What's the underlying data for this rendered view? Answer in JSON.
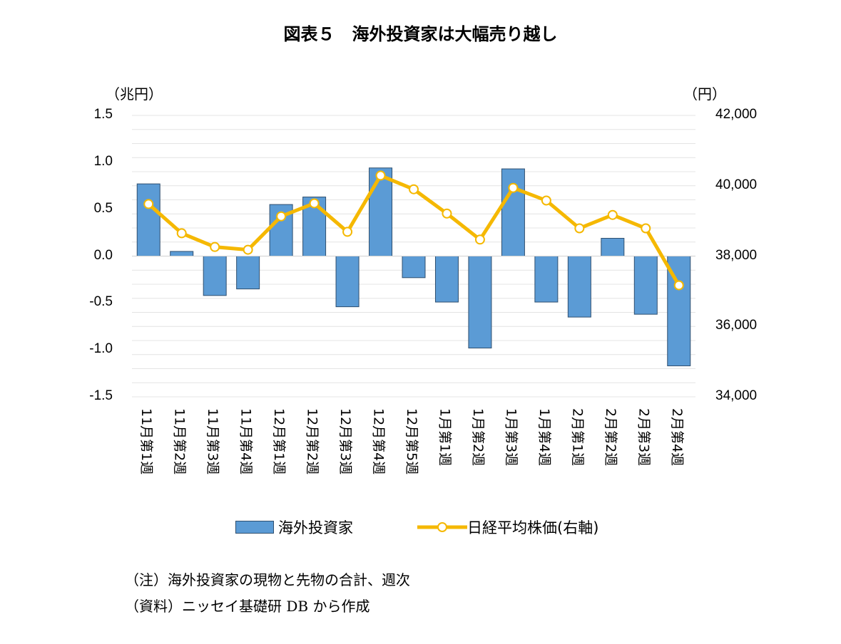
{
  "title": "図表５　海外投資家は大幅売り越し",
  "notes": [
    "（注）海外投資家の現物と先物の合計、週次",
    "（資料）ニッセイ基礎研 DB から作成"
  ],
  "chart_data": {
    "type": "bar+line",
    "title": "図表５　海外投資家は大幅売り越し",
    "left_unit": "（兆円）",
    "right_unit": "（円）",
    "ylim_left": [
      -1.5,
      1.5
    ],
    "ylim_right": [
      34000,
      42000
    ],
    "left_ticks": [
      "1.5",
      "1.0",
      "0.5",
      "0.0",
      "-0.5",
      "-1.0",
      "-1.5"
    ],
    "right_ticks": [
      "42,000",
      "40,000",
      "38,000",
      "36,000",
      "34,000"
    ],
    "categories": [
      "11月第1週",
      "11月第2週",
      "11月第3週",
      "11月第4週",
      "12月第1週",
      "12月第2週",
      "12月第3週",
      "12月第4週",
      "12月第5週",
      "1月第1週",
      "1月第2週",
      "1月第3週",
      "1月第4週",
      "2月第1週",
      "2月第2週",
      "2月第3週",
      "2月第4週"
    ],
    "series": [
      {
        "name": "海外投資家",
        "type": "bar",
        "axis": "left",
        "color": "#5b9bd5",
        "values": [
          0.77,
          0.05,
          -0.42,
          -0.35,
          0.55,
          0.63,
          -0.54,
          0.94,
          -0.23,
          -0.49,
          -0.98,
          0.93,
          -0.49,
          -0.65,
          0.19,
          -0.62,
          -1.17
        ]
      },
      {
        "name": "日経平均株価(右軸)",
        "type": "line",
        "axis": "right",
        "color": "#f5b800",
        "values": [
          39480,
          38650,
          38260,
          38180,
          39130,
          39500,
          38690,
          40290,
          39900,
          39210,
          38470,
          39940,
          39580,
          38790,
          39170,
          38790,
          37170
        ]
      }
    ],
    "grid": true,
    "legend": "bottom"
  }
}
